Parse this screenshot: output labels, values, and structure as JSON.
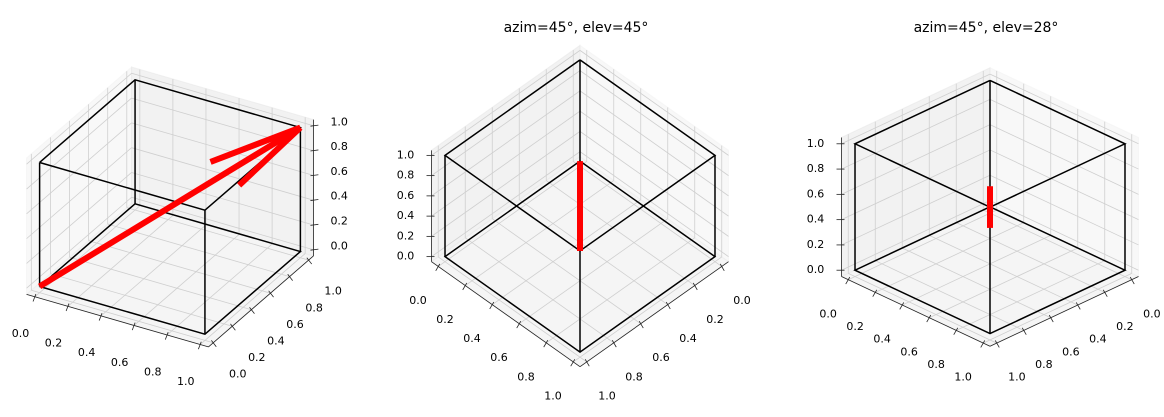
{
  "chart_data": [
    {
      "type": "line3d",
      "azim": -60,
      "elev": 30,
      "xlim": [
        -0.05,
        1.05
      ],
      "ylim": [
        -0.05,
        1.05
      ],
      "zlim": [
        -0.05,
        1.05
      ],
      "xticks": [
        {
          "value": 0,
          "label": "0.0"
        },
        {
          "value": 0.2,
          "label": "0.2"
        },
        {
          "value": 0.4,
          "label": "0.4"
        },
        {
          "value": 0.6,
          "label": "0.6"
        },
        {
          "value": 0.8,
          "label": "0.8"
        },
        {
          "value": 1,
          "label": "1.0"
        }
      ],
      "yticks": [
        {
          "value": 0,
          "label": "0.0"
        },
        {
          "value": 0.2,
          "label": "0.2"
        },
        {
          "value": 0.4,
          "label": "0.4"
        },
        {
          "value": 0.6,
          "label": "0.6"
        },
        {
          "value": 0.8,
          "label": "0.8"
        },
        {
          "value": 1,
          "label": "1.0"
        }
      ],
      "zticks": [
        {
          "value": 0,
          "label": "0.0"
        },
        {
          "value": 0.2,
          "label": "0.2"
        },
        {
          "value": 0.4,
          "label": "0.4"
        },
        {
          "value": 0.6,
          "label": "0.6"
        },
        {
          "value": 0.8,
          "label": "0.8"
        },
        {
          "value": 1,
          "label": "1.0"
        }
      ],
      "grid": true,
      "series": [
        {
          "color": "#000000",
          "x": [
            0,
            1,
            1,
            0,
            0,
            null,
            0,
            1,
            1,
            0,
            0,
            null,
            0,
            0,
            null,
            1,
            1,
            null,
            1,
            1,
            null,
            0,
            0
          ],
          "y": [
            0,
            0,
            1,
            1,
            0,
            null,
            0,
            0,
            1,
            1,
            0,
            null,
            0,
            0,
            null,
            0,
            0,
            null,
            1,
            1,
            null,
            1,
            1
          ],
          "z": [
            0,
            0,
            0,
            0,
            0,
            null,
            1,
            1,
            1,
            1,
            1,
            null,
            0,
            1,
            null,
            0,
            1,
            null,
            0,
            1,
            null,
            0,
            1
          ]
        },
        {
          "color": "#ff0000",
          "arrow": true,
          "x": [
            0,
            1
          ],
          "y": [
            0,
            1
          ],
          "z": [
            0,
            1
          ]
        }
      ]
    },
    {
      "type": "line3d",
      "title": "azim=45°, elev=45°",
      "azim": 45,
      "elev": 45,
      "xlim": [
        -0.05,
        1.05
      ],
      "ylim": [
        -0.05,
        1.05
      ],
      "zlim": [
        -0.05,
        1.05
      ],
      "xticks": [
        {
          "value": 0,
          "label": "0.0"
        },
        {
          "value": 0.2,
          "label": "0.2"
        },
        {
          "value": 0.4,
          "label": "0.4"
        },
        {
          "value": 0.6,
          "label": "0.6"
        },
        {
          "value": 0.8,
          "label": "0.8"
        },
        {
          "value": 1,
          "label": "1.0"
        }
      ],
      "yticks": [
        {
          "value": 0,
          "label": "0.0"
        },
        {
          "value": 0.2,
          "label": "0.2"
        },
        {
          "value": 0.4,
          "label": "0.4"
        },
        {
          "value": 0.6,
          "label": "0.6"
        },
        {
          "value": 0.8,
          "label": "0.8"
        },
        {
          "value": 1,
          "label": "1.0"
        }
      ],
      "zticks": [
        {
          "value": 0,
          "label": "0.0"
        },
        {
          "value": 0.2,
          "label": "0.2"
        },
        {
          "value": 0.4,
          "label": "0.4"
        },
        {
          "value": 0.6,
          "label": "0.6"
        },
        {
          "value": 0.8,
          "label": "0.8"
        },
        {
          "value": 1,
          "label": "1.0"
        }
      ],
      "grid": true,
      "series": [
        {
          "color": "#000000",
          "x": [
            0,
            1,
            1,
            0,
            0,
            null,
            0,
            1,
            1,
            0,
            0,
            null,
            0,
            0,
            null,
            1,
            1,
            null,
            1,
            1,
            null,
            0,
            0
          ],
          "y": [
            0,
            0,
            1,
            1,
            0,
            null,
            0,
            0,
            1,
            1,
            0,
            null,
            0,
            0,
            null,
            0,
            0,
            null,
            1,
            1,
            null,
            1,
            1
          ],
          "z": [
            0,
            0,
            0,
            0,
            0,
            null,
            1,
            1,
            1,
            1,
            1,
            null,
            0,
            1,
            null,
            0,
            1,
            null,
            0,
            1,
            null,
            0,
            1
          ]
        },
        {
          "color": "#ff0000",
          "arrow": true,
          "x": [
            0,
            1
          ],
          "y": [
            0,
            1
          ],
          "z": [
            0,
            1
          ]
        }
      ]
    },
    {
      "type": "line3d",
      "title": "azim=45°, elev=28°",
      "azim": 45,
      "elev": 28,
      "xlim": [
        -0.05,
        1.05
      ],
      "ylim": [
        -0.05,
        1.05
      ],
      "zlim": [
        -0.05,
        1.05
      ],
      "xticks": [
        {
          "value": 0,
          "label": "0.0"
        },
        {
          "value": 0.2,
          "label": "0.2"
        },
        {
          "value": 0.4,
          "label": "0.4"
        },
        {
          "value": 0.6,
          "label": "0.6"
        },
        {
          "value": 0.8,
          "label": "0.8"
        },
        {
          "value": 1,
          "label": "1.0"
        }
      ],
      "yticks": [
        {
          "value": 0,
          "label": "0.0"
        },
        {
          "value": 0.2,
          "label": "0.2"
        },
        {
          "value": 0.4,
          "label": "0.4"
        },
        {
          "value": 0.6,
          "label": "0.6"
        },
        {
          "value": 0.8,
          "label": "0.8"
        },
        {
          "value": 1,
          "label": "1.0"
        }
      ],
      "zticks": [
        {
          "value": 0,
          "label": "0.0"
        },
        {
          "value": 0.2,
          "label": "0.2"
        },
        {
          "value": 0.4,
          "label": "0.4"
        },
        {
          "value": 0.6,
          "label": "0.6"
        },
        {
          "value": 0.8,
          "label": "0.8"
        },
        {
          "value": 1,
          "label": "1.0"
        }
      ],
      "grid": true,
      "series": [
        {
          "color": "#000000",
          "x": [
            0,
            1,
            1,
            0,
            0,
            null,
            0,
            1,
            1,
            0,
            0,
            null,
            0,
            0,
            null,
            1,
            1,
            null,
            1,
            1,
            null,
            0,
            0
          ],
          "y": [
            0,
            0,
            1,
            1,
            0,
            null,
            0,
            0,
            1,
            1,
            0,
            null,
            0,
            0,
            null,
            0,
            0,
            null,
            1,
            1,
            null,
            1,
            1
          ],
          "z": [
            0,
            0,
            0,
            0,
            0,
            null,
            1,
            1,
            1,
            1,
            1,
            null,
            0,
            1,
            null,
            0,
            1,
            null,
            0,
            1,
            null,
            0,
            1
          ]
        },
        {
          "color": "#ff0000",
          "arrow": true,
          "x": [
            0,
            1
          ],
          "y": [
            0,
            1
          ],
          "z": [
            0,
            1
          ]
        }
      ]
    }
  ]
}
